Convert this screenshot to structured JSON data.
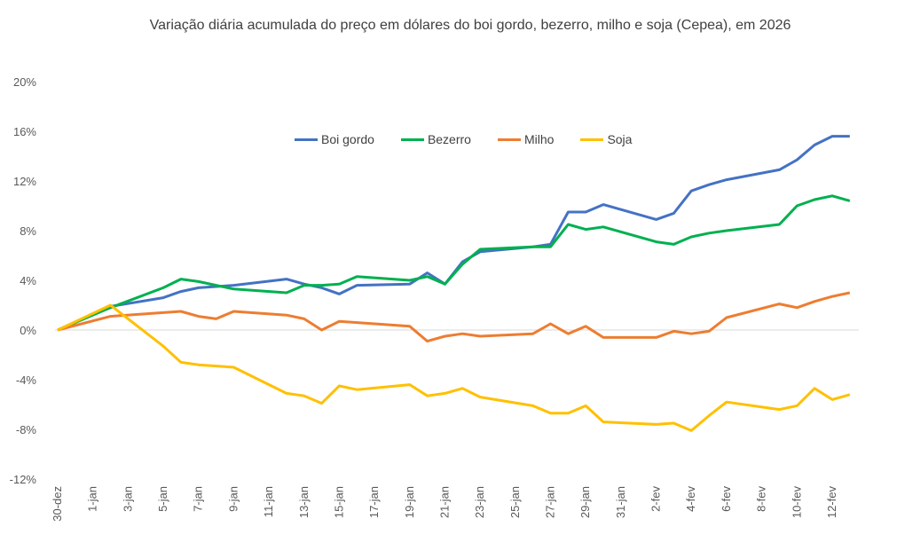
{
  "chart_data": {
    "type": "line",
    "title": "Variação diária acumulada do preço em dólares do boi gordo, bezerro, milho e soja (Cepea), em 2026",
    "xlabel": "",
    "ylabel": "",
    "ylim": [
      -12,
      20
    ],
    "y_ticks": [
      "20%",
      "16%",
      "12%",
      "8%",
      "4%",
      "0%",
      "-4%",
      "-8%",
      "-12%"
    ],
    "y_tick_values": [
      20,
      16,
      12,
      8,
      4,
      0,
      -4,
      -8,
      -12
    ],
    "x_range": [
      "30-dez",
      "13-fev"
    ],
    "x_tick_labels": [
      "30-dez",
      "1-jan",
      "3-jan",
      "5-jan",
      "7-jan",
      "9-jan",
      "11-jan",
      "13-jan",
      "15-jan",
      "17-jan",
      "19-jan",
      "21-jan",
      "23-jan",
      "25-jan",
      "27-jan",
      "29-jan",
      "31-jan",
      "2-fev",
      "4-fev",
      "6-fev",
      "8-fev",
      "10-fev",
      "12-fev"
    ],
    "grid": false,
    "zero_line": true,
    "legend_position": "top-center",
    "x": [
      "30-dez",
      "2-jan",
      "5-jan",
      "6-jan",
      "7-jan",
      "8-jan",
      "9-jan",
      "12-jan",
      "13-jan",
      "14-jan",
      "15-jan",
      "16-jan",
      "19-jan",
      "20-jan",
      "21-jan",
      "22-jan",
      "23-jan",
      "26-jan",
      "27-jan",
      "28-jan",
      "29-jan",
      "30-jan",
      "2-fev",
      "3-fev",
      "4-fev",
      "5-fev",
      "6-fev",
      "9-fev",
      "10-fev",
      "11-fev",
      "12-fev",
      "13-fev"
    ],
    "series": [
      {
        "name": "Boi gordo",
        "color": "#4472C4",
        "values": [
          0,
          1.9,
          2.6,
          3.1,
          3.4,
          3.5,
          3.6,
          4.1,
          3.7,
          3.4,
          2.9,
          3.6,
          3.7,
          4.6,
          3.7,
          5.5,
          6.3,
          6.7,
          6.9,
          9.5,
          9.5,
          10.1,
          8.9,
          9.4,
          11.2,
          11.7,
          12.1,
          12.9,
          13.7,
          14.9,
          15.6,
          15.6
        ]
      },
      {
        "name": "Bezerro",
        "color": "#00B050",
        "values": [
          0,
          1.8,
          3.4,
          4.1,
          3.9,
          3.6,
          3.3,
          3.0,
          3.6,
          3.6,
          3.7,
          4.3,
          4.0,
          4.3,
          3.7,
          5.3,
          6.5,
          6.7,
          6.7,
          8.5,
          8.1,
          8.3,
          7.1,
          6.9,
          7.5,
          7.8,
          8.0,
          8.5,
          10.0,
          10.5,
          10.8,
          10.4
        ]
      },
      {
        "name": "Milho",
        "color": "#ED7D31",
        "values": [
          0,
          1.1,
          1.4,
          1.5,
          1.1,
          0.9,
          1.5,
          1.2,
          0.9,
          0.0,
          0.7,
          0.6,
          0.3,
          -0.9,
          -0.5,
          -0.3,
          -0.5,
          -0.3,
          0.5,
          -0.3,
          0.3,
          -0.6,
          -0.6,
          -0.1,
          -0.3,
          -0.1,
          1.0,
          2.1,
          1.8,
          2.3,
          2.7,
          3.0
        ]
      },
      {
        "name": "Soja",
        "color": "#FFC000",
        "values": [
          0,
          2.0,
          -1.3,
          -2.6,
          -2.8,
          -2.9,
          -3.0,
          -5.1,
          -5.3,
          -5.9,
          -4.5,
          -4.8,
          -4.4,
          -5.3,
          -5.1,
          -4.7,
          -5.4,
          -6.1,
          -6.7,
          -6.7,
          -6.1,
          -7.4,
          -7.6,
          -7.5,
          -8.1,
          -6.9,
          -5.8,
          -6.4,
          -6.1,
          -4.7,
          -5.6,
          -5.2
        ]
      }
    ]
  }
}
